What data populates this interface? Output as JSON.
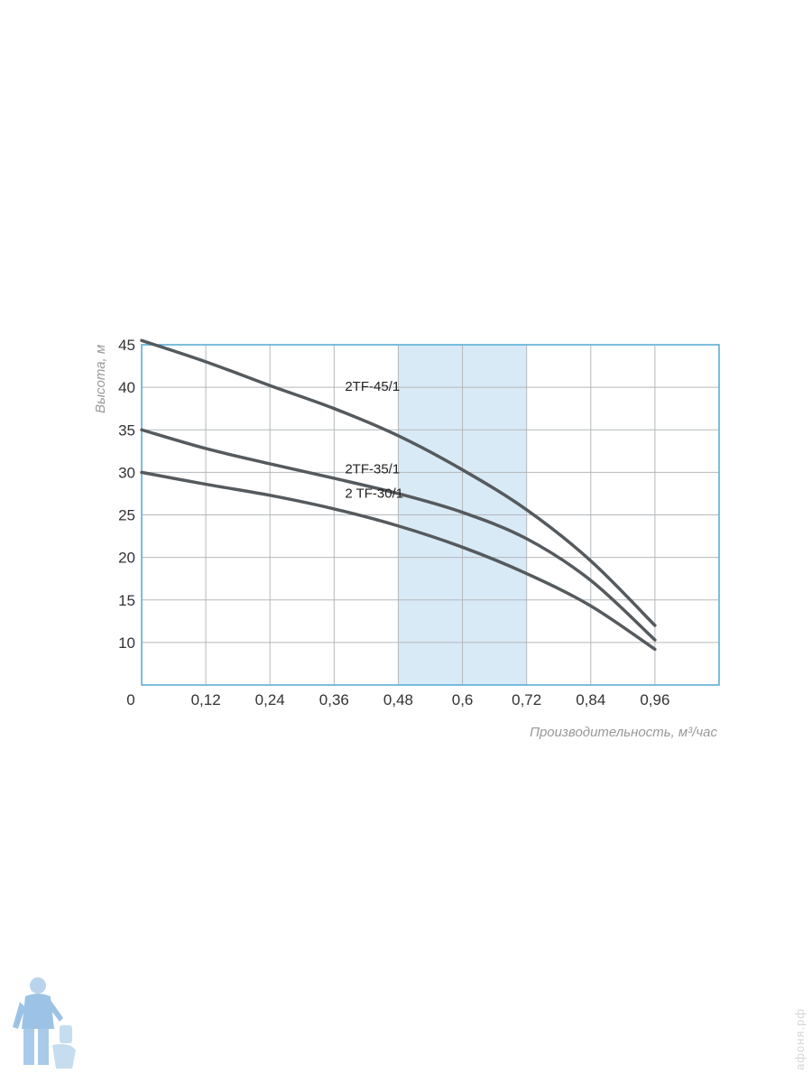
{
  "chart_data": {
    "type": "line",
    "title": "",
    "xlabel": "Производительность, м³/час",
    "ylabel": "Высота, м",
    "xlim": [
      0,
      1.08
    ],
    "ylim": [
      5,
      45
    ],
    "x_ticks": [
      "0",
      "0,12",
      "0,24",
      "0,36",
      "0,48",
      "0,6",
      "0,72",
      "0,84",
      "0,96"
    ],
    "x_tick_values": [
      0,
      0.12,
      0.24,
      0.36,
      0.48,
      0.6,
      0.72,
      0.84,
      0.96
    ],
    "y_ticks": [
      "10",
      "15",
      "20",
      "25",
      "30",
      "35",
      "40",
      "45"
    ],
    "y_tick_values": [
      10,
      15,
      20,
      25,
      30,
      35,
      40,
      45
    ],
    "grid": true,
    "highlight_range": [
      0.48,
      0.72
    ],
    "colors": {
      "line": "#555a5e",
      "grid": "#b4b8bb",
      "frame": "#5aaed6",
      "highlight": "#d8eaf6"
    },
    "series": [
      {
        "name": "2TF-45/1",
        "x": [
          0,
          0.12,
          0.24,
          0.36,
          0.48,
          0.6,
          0.72,
          0.84,
          0.96
        ],
        "y": [
          45.5,
          43,
          40.2,
          37.5,
          34.3,
          30.3,
          25.6,
          19.6,
          12
        ]
      },
      {
        "name": "2TF-35/1",
        "x": [
          0,
          0.12,
          0.24,
          0.36,
          0.48,
          0.6,
          0.72,
          0.84,
          0.96
        ],
        "y": [
          35,
          32.8,
          31,
          29.3,
          27.5,
          25.3,
          22.2,
          17.3,
          10.3
        ]
      },
      {
        "name": "2 TF-30/1",
        "x": [
          0,
          0.12,
          0.24,
          0.36,
          0.48,
          0.6,
          0.72,
          0.84,
          0.96
        ],
        "y": [
          30,
          28.6,
          27.3,
          25.7,
          23.7,
          21.2,
          18.1,
          14.3,
          9.2
        ]
      }
    ]
  },
  "watermark": "афоня.рф"
}
